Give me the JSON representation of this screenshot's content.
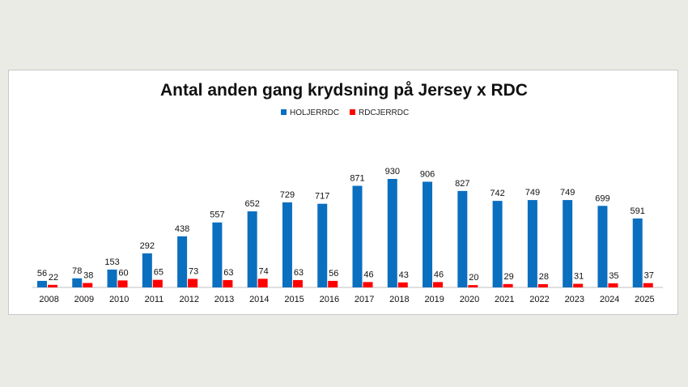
{
  "chart_data": {
    "type": "bar",
    "title": "Antal anden gang krydsning på Jersey x RDC",
    "xlabel": "",
    "ylabel": "",
    "ylim": [
      0,
      930
    ],
    "grid": false,
    "legend_position": "top-center",
    "categories": [
      "2008",
      "2009",
      "2010",
      "2011",
      "2012",
      "2013",
      "2014",
      "2015",
      "2016",
      "2017",
      "2018",
      "2019",
      "2020",
      "2021",
      "2022",
      "2023",
      "2024",
      "2025"
    ],
    "series": [
      {
        "name": "HOLJERRDC",
        "color": "#0b6fc0",
        "values": [
          56,
          78,
          153,
          292,
          438,
          557,
          652,
          729,
          717,
          871,
          930,
          906,
          827,
          742,
          749,
          749,
          699,
          591
        ]
      },
      {
        "name": "RDCJERRDC",
        "color": "#ff0000",
        "values": [
          22,
          38,
          60,
          65,
          73,
          63,
          74,
          63,
          56,
          46,
          43,
          46,
          20,
          29,
          28,
          31,
          35,
          37
        ]
      }
    ]
  }
}
